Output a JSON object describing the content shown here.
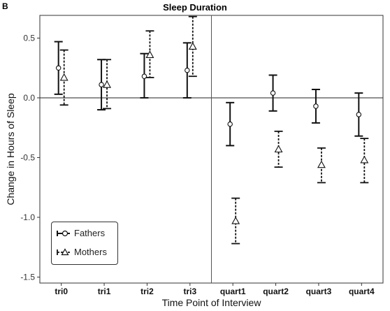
{
  "panel_letter": "B",
  "chart_data": {
    "type": "errorbar",
    "title": "Sleep Duration",
    "xlabel": "Time Point of Interview",
    "ylabel": "Change in Hours of Sleep",
    "categories": [
      "tri0",
      "tri1",
      "tri2",
      "tri3",
      "quart1",
      "quart2",
      "quart3",
      "quart4"
    ],
    "ylim": [
      -1.55,
      0.69
    ],
    "yticks": [
      -1.5,
      -1.0,
      -0.5,
      0.0,
      0.5
    ],
    "ytick_labels": [
      "-1.5",
      "-1.0",
      "-0.5",
      "0.0",
      "0.5"
    ],
    "reference_line_y": 0.0,
    "divider_between": [
      "tri3",
      "quart1"
    ],
    "grid": false,
    "legend_position": "bottom-left",
    "series": [
      {
        "name": "Fathers",
        "marker": "circle",
        "line_style": "solid",
        "values": [
          0.25,
          0.11,
          0.18,
          0.23,
          -0.22,
          0.04,
          -0.07,
          -0.14
        ],
        "lower": [
          0.03,
          -0.1,
          0.0,
          0.0,
          -0.4,
          -0.11,
          -0.21,
          -0.32
        ],
        "upper": [
          0.47,
          0.32,
          0.37,
          0.46,
          -0.04,
          0.19,
          0.07,
          0.04
        ]
      },
      {
        "name": "Mothers",
        "marker": "triangle",
        "line_style": "dashed",
        "values": [
          0.17,
          0.11,
          0.36,
          0.43,
          -1.03,
          -0.43,
          -0.56,
          -0.52
        ],
        "lower": [
          -0.06,
          -0.09,
          0.17,
          0.18,
          -1.22,
          -0.58,
          -0.71,
          -0.71
        ],
        "upper": [
          0.4,
          0.32,
          0.56,
          0.68,
          -0.84,
          -0.28,
          -0.42,
          -0.34
        ]
      }
    ]
  }
}
